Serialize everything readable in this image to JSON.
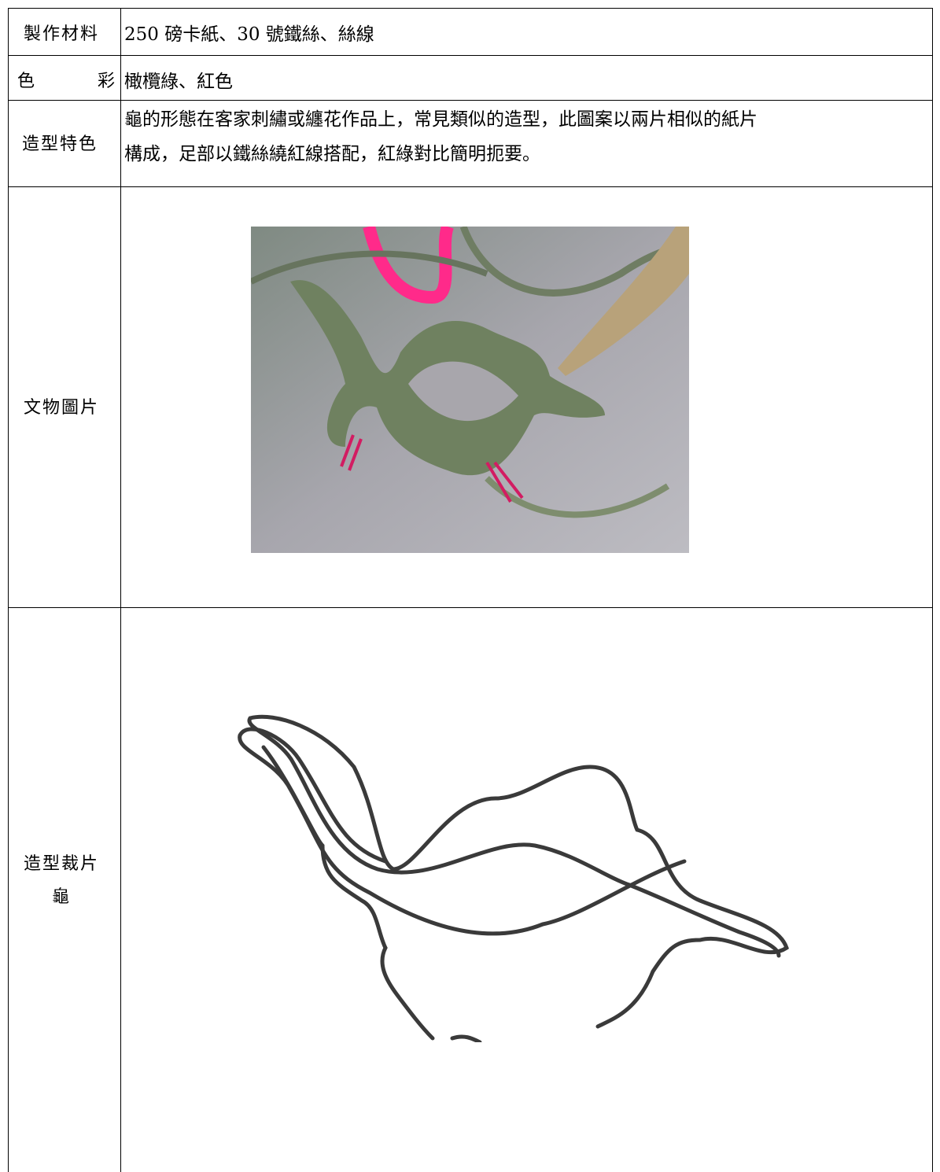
{
  "table": {
    "rows": [
      {
        "label": "製作材料",
        "content": "250 磅卡紙、30 號鐵絲、絲線"
      },
      {
        "label": "色彩",
        "content": "橄欖綠、紅色"
      },
      {
        "label": "造型特色",
        "content_lines": [
          "龜的形態在客家刺繡或纏花作品上，常見類似的造型，此圖案以兩片相似的紙片",
          "構成，足部以鐵絲繞紅線搭配，紅綠對比簡明扼要。"
        ]
      },
      {
        "label": "文物圖片"
      },
      {
        "label_lines": [
          "造型裁片",
          "龜"
        ]
      }
    ]
  }
}
